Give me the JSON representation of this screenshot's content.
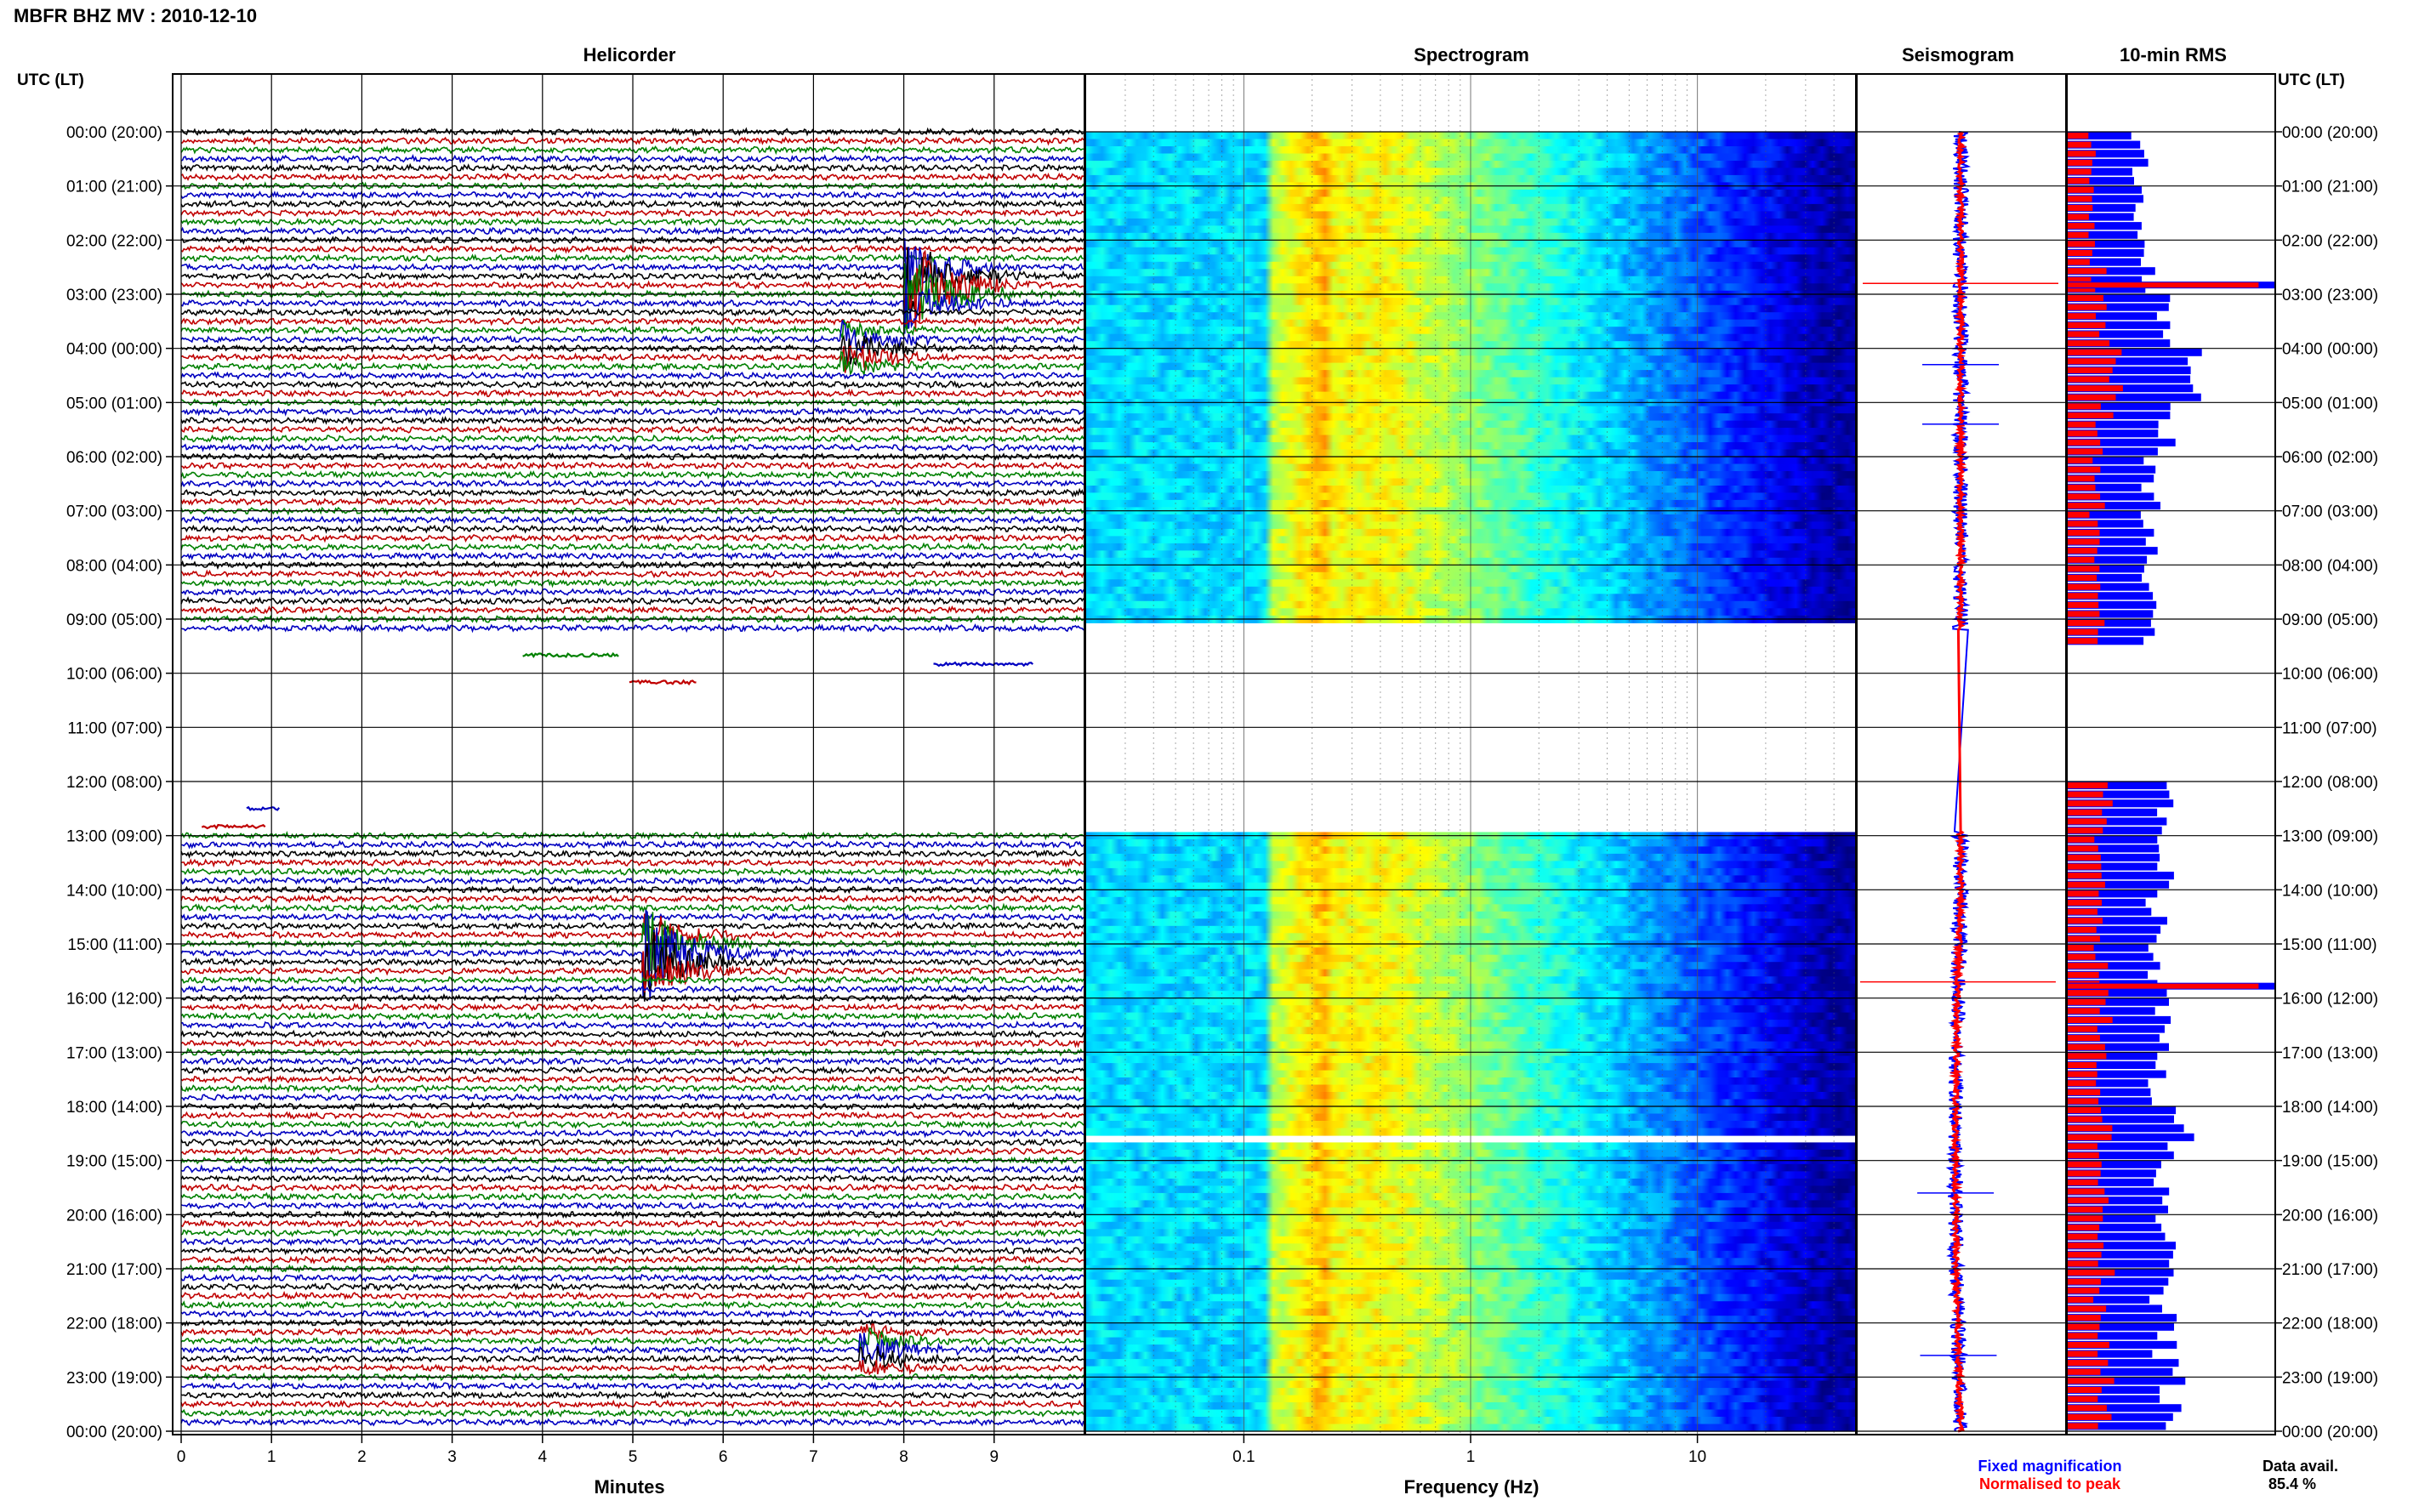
{
  "header": {
    "title": "MBFR BHZ MV : 2010-12-10"
  },
  "panels": {
    "helicorder": "Helicorder",
    "spectrogram": "Spectrogram",
    "seismogram": "Seismogram",
    "rms": "10-min RMS"
  },
  "time_axis": {
    "label": "UTC (LT)",
    "ticks": [
      "00:00 (20:00)",
      "01:00 (21:00)",
      "02:00 (22:00)",
      "03:00 (23:00)",
      "04:00 (00:00)",
      "05:00 (01:00)",
      "06:00 (02:00)",
      "07:00 (03:00)",
      "08:00 (04:00)",
      "09:00 (05:00)",
      "10:00 (06:00)",
      "11:00 (07:00)",
      "12:00 (08:00)",
      "13:00 (09:00)",
      "14:00 (10:00)",
      "15:00 (11:00)",
      "16:00 (12:00)",
      "17:00 (13:00)",
      "18:00 (14:00)",
      "19:00 (15:00)",
      "20:00 (16:00)",
      "21:00 (17:00)",
      "22:00 (18:00)",
      "23:00 (19:00)",
      "00:00 (20:00)"
    ]
  },
  "legend": {
    "fixed": "Fixed magnification",
    "normalised": "Normalised to peak"
  },
  "data_avail": {
    "label": "Data avail.",
    "value": "85.4 %"
  },
  "chart_data": [
    {
      "type": "line",
      "title": "Helicorder",
      "xlabel": "Minutes",
      "x_ticks": [
        "0",
        "1",
        "2",
        "3",
        "4",
        "5",
        "6",
        "7",
        "8",
        "9"
      ],
      "xlim": [
        0,
        10
      ],
      "series_colors": [
        "#000000",
        "#c00000",
        "#008000",
        "#0000c0"
      ],
      "gaps_utc_hours": [
        [
          9.2,
          12.9
        ]
      ],
      "events": [
        {
          "time_utc": "02:50",
          "minute": 8.0,
          "color": "#000000",
          "amplitude": 1.0
        },
        {
          "time_utc": "04:00",
          "minute": 7.3,
          "color": "#c00000",
          "amplitude": 0.45
        },
        {
          "time_utc": "15:10",
          "minute": 5.1,
          "color": "#0000c0",
          "amplitude": 1.0
        },
        {
          "time_utc": "22:30",
          "minute": 7.5,
          "color": "#008000",
          "amplitude": 0.35
        }
      ]
    },
    {
      "type": "heatmap",
      "title": "Spectrogram",
      "xlabel": "Frequency (Hz)",
      "x_scale": "log",
      "x_ticks": [
        "0.1",
        "1",
        "10"
      ],
      "xlim": [
        0.02,
        50
      ],
      "colormap": "jet",
      "gaps_utc_hours": [
        [
          9.0,
          12.85
        ],
        [
          18.45,
          18.6
        ]
      ]
    },
    {
      "type": "line",
      "title": "Seismogram",
      "series": [
        {
          "name": "Fixed magnification",
          "color": "#0000ff"
        },
        {
          "name": "Normalised to peak",
          "color": "#ff0000"
        }
      ],
      "spikes_utc_hours": [
        2.8,
        4.3,
        5.4,
        15.7,
        19.6,
        22.6
      ]
    },
    {
      "type": "bar",
      "title": "10-min RMS",
      "orientation": "horizontal",
      "series": [
        {
          "name": "Fixed magnification",
          "color": "#0000ff"
        },
        {
          "name": "Normalised to peak",
          "color": "#ff0000"
        }
      ],
      "values_relative_hourly": [
        0.34,
        0.36,
        0.37,
        0.99,
        0.58,
        0.48,
        0.4,
        0.38,
        0.4,
        0.4,
        0,
        0,
        0.48,
        0.45,
        0.42,
        0.44,
        0.98,
        0.42,
        0.55,
        0.44,
        0.46,
        0.46,
        0.48,
        0.5
      ]
    }
  ]
}
